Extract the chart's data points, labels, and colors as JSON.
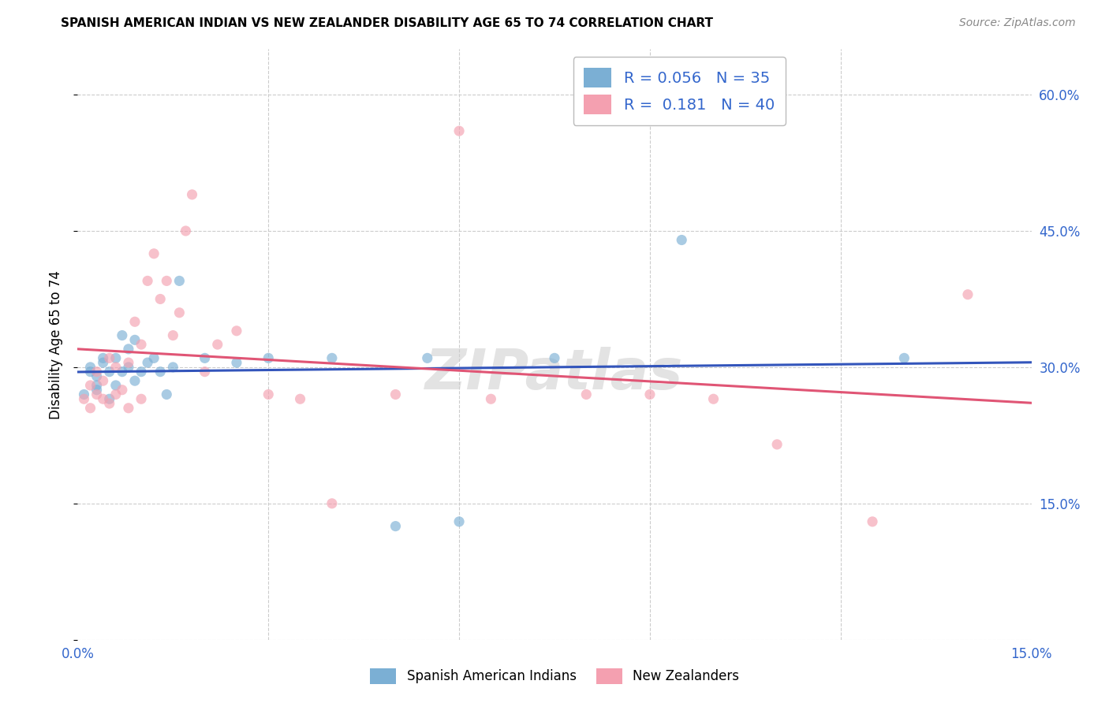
{
  "title": "SPANISH AMERICAN INDIAN VS NEW ZEALANDER DISABILITY AGE 65 TO 74 CORRELATION CHART",
  "source": "Source: ZipAtlas.com",
  "ylabel": "Disability Age 65 to 74",
  "xlim": [
    0.0,
    0.15
  ],
  "ylim": [
    0.0,
    0.65
  ],
  "xticks": [
    0.0,
    0.03,
    0.06,
    0.09,
    0.12,
    0.15
  ],
  "yticks": [
    0.0,
    0.15,
    0.3,
    0.45,
    0.6
  ],
  "ytick_labels": [
    "",
    "15.0%",
    "30.0%",
    "45.0%",
    "60.0%"
  ],
  "background_color": "#ffffff",
  "grid_color": "#cccccc",
  "watermark": "ZIPatlas",
  "blue_color": "#7bafd4",
  "pink_color": "#f4a0b0",
  "blue_line_color": "#3355bb",
  "pink_line_color": "#e05575",
  "marker_size": 90,
  "marker_alpha": 0.65,
  "spanish_x": [
    0.001,
    0.002,
    0.002,
    0.003,
    0.003,
    0.003,
    0.004,
    0.004,
    0.005,
    0.005,
    0.006,
    0.006,
    0.007,
    0.007,
    0.008,
    0.008,
    0.009,
    0.009,
    0.01,
    0.011,
    0.012,
    0.013,
    0.014,
    0.015,
    0.016,
    0.02,
    0.025,
    0.03,
    0.04,
    0.05,
    0.055,
    0.06,
    0.075,
    0.095,
    0.13
  ],
  "spanish_y": [
    0.27,
    0.295,
    0.3,
    0.275,
    0.28,
    0.29,
    0.305,
    0.31,
    0.265,
    0.295,
    0.28,
    0.31,
    0.295,
    0.335,
    0.3,
    0.32,
    0.285,
    0.33,
    0.295,
    0.305,
    0.31,
    0.295,
    0.27,
    0.3,
    0.395,
    0.31,
    0.305,
    0.31,
    0.31,
    0.125,
    0.31,
    0.13,
    0.31,
    0.44,
    0.31
  ],
  "nz_x": [
    0.001,
    0.002,
    0.002,
    0.003,
    0.003,
    0.004,
    0.004,
    0.005,
    0.005,
    0.006,
    0.006,
    0.007,
    0.008,
    0.008,
    0.009,
    0.01,
    0.01,
    0.011,
    0.012,
    0.013,
    0.014,
    0.015,
    0.016,
    0.017,
    0.018,
    0.02,
    0.022,
    0.025,
    0.03,
    0.035,
    0.04,
    0.05,
    0.06,
    0.065,
    0.08,
    0.09,
    0.1,
    0.11,
    0.125,
    0.14
  ],
  "nz_y": [
    0.265,
    0.255,
    0.28,
    0.27,
    0.295,
    0.265,
    0.285,
    0.26,
    0.31,
    0.27,
    0.3,
    0.275,
    0.255,
    0.305,
    0.35,
    0.265,
    0.325,
    0.395,
    0.425,
    0.375,
    0.395,
    0.335,
    0.36,
    0.45,
    0.49,
    0.295,
    0.325,
    0.34,
    0.27,
    0.265,
    0.15,
    0.27,
    0.56,
    0.265,
    0.27,
    0.27,
    0.265,
    0.215,
    0.13,
    0.38
  ],
  "legend_entries": [
    {
      "r": "R = 0.056",
      "n": "N = 35"
    },
    {
      "r": "R =  0.181",
      "n": "N = 40"
    }
  ],
  "bottom_legend": [
    "Spanish American Indians",
    "New Zealanders"
  ]
}
